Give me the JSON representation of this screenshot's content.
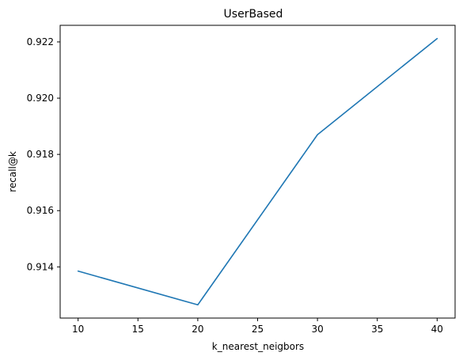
{
  "chart_data": {
    "type": "line",
    "title": "UserBased",
    "xlabel": "k_nearest_neigbors",
    "ylabel": "recall@k",
    "x": [
      10,
      20,
      30,
      40
    ],
    "series": [
      {
        "values": [
          0.91385,
          0.91265,
          0.9187,
          0.92212
        ]
      }
    ],
    "xlim": [
      8.5,
      41.5
    ],
    "ylim": [
      0.91218,
      0.92259
    ],
    "xticks": [
      10,
      15,
      20,
      25,
      30,
      35,
      40
    ],
    "xtick_labels": [
      "10",
      "15",
      "20",
      "25",
      "30",
      "35",
      "40"
    ],
    "yticks": [
      0.914,
      0.916,
      0.918,
      0.92,
      0.922
    ],
    "ytick_labels": [
      "0.914",
      "0.916",
      "0.918",
      "0.920",
      "0.922"
    ],
    "grid": false,
    "colors": {
      "line": "#1f77b4",
      "axes": "#000000",
      "background": "#ffffff"
    }
  }
}
